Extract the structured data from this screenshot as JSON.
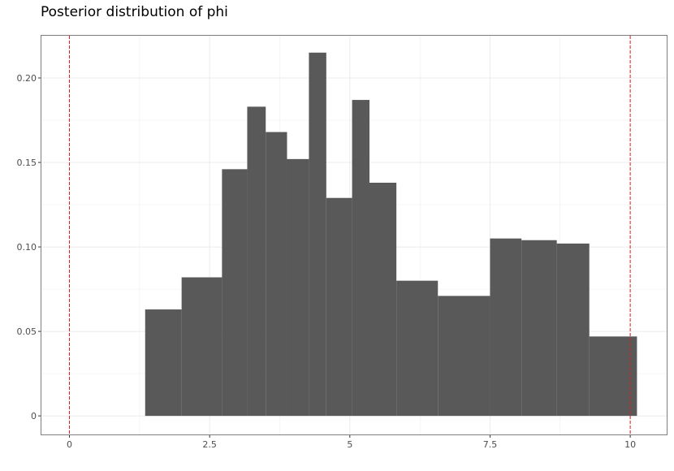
{
  "chart_data": {
    "type": "bar",
    "title": "Posterior distribution of phi",
    "xlabel": "",
    "ylabel": "",
    "xlim": [
      -0.5,
      10.65
    ],
    "ylim": [
      -0.011,
      0.225
    ],
    "x_ticks": [
      0,
      2.5,
      5,
      7.5,
      10
    ],
    "x_tick_labels": [
      "0",
      "2.5",
      "5",
      "7.5",
      "10"
    ],
    "y_ticks": [
      0,
      0.05,
      0.1,
      0.15,
      0.2
    ],
    "y_tick_labels": [
      "0",
      "0.05",
      "0.10",
      "0.15",
      "0.20"
    ],
    "grid": true,
    "bins": [
      {
        "x0": 1.35,
        "x1": 2.0,
        "value": 0.063
      },
      {
        "x0": 2.0,
        "x1": 2.72,
        "value": 0.082
      },
      {
        "x0": 2.72,
        "x1": 3.17,
        "value": 0.146
      },
      {
        "x0": 3.17,
        "x1": 3.5,
        "value": 0.183
      },
      {
        "x0": 3.5,
        "x1": 3.88,
        "value": 0.168
      },
      {
        "x0": 3.88,
        "x1": 4.27,
        "value": 0.152
      },
      {
        "x0": 4.27,
        "x1": 4.58,
        "value": 0.215
      },
      {
        "x0": 4.58,
        "x1": 5.04,
        "value": 0.129
      },
      {
        "x0": 5.04,
        "x1": 5.35,
        "value": 0.187
      },
      {
        "x0": 5.35,
        "x1": 5.83,
        "value": 0.138
      },
      {
        "x0": 5.83,
        "x1": 6.57,
        "value": 0.08
      },
      {
        "x0": 6.57,
        "x1": 7.5,
        "value": 0.071
      },
      {
        "x0": 7.5,
        "x1": 8.06,
        "value": 0.105
      },
      {
        "x0": 8.06,
        "x1": 8.69,
        "value": 0.104
      },
      {
        "x0": 8.69,
        "x1": 9.27,
        "value": 0.102
      },
      {
        "x0": 9.27,
        "x1": 10.12,
        "value": 0.047
      }
    ],
    "reference_lines": [
      {
        "x": 0,
        "color": "#e41a1c",
        "style": "dashed"
      },
      {
        "x": 10,
        "color": "#e41a1c",
        "style": "dashed"
      }
    ],
    "colors": {
      "bar": "#595959",
      "grid": "#ebebeb",
      "panel_border": "#7f7f7f"
    }
  }
}
